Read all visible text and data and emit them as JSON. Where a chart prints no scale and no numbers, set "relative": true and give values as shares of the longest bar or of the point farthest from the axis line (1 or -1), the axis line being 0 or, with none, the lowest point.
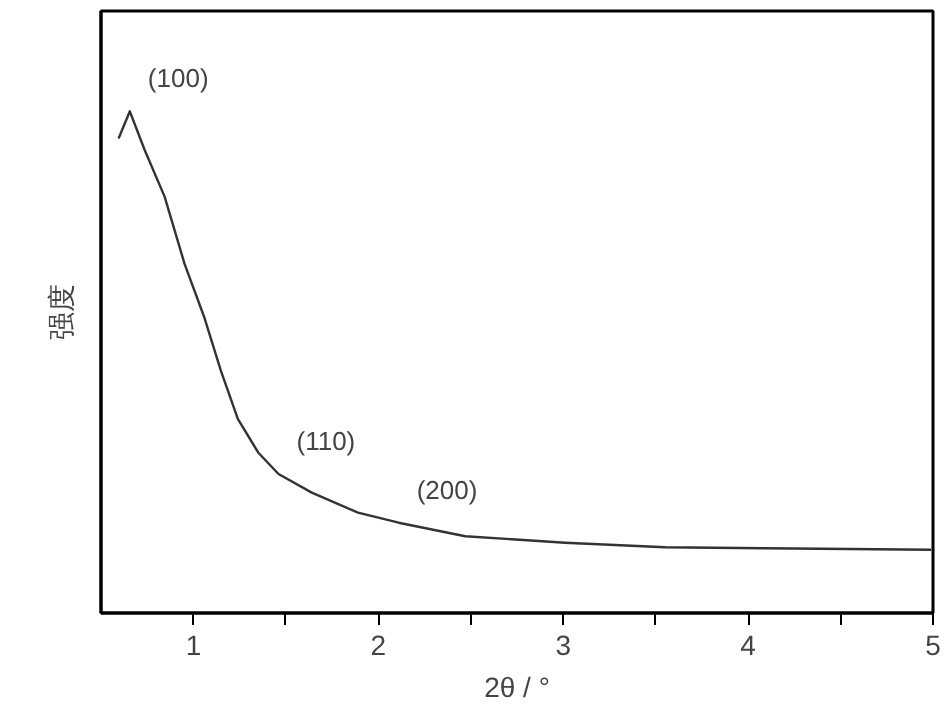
{
  "chart_data": {
    "type": "line",
    "relative": true,
    "xlabel": "2θ / °",
    "ylabel": "强度",
    "x": [
      0.595,
      0.656,
      0.735,
      0.844,
      0.952,
      1.06,
      1.15,
      1.24,
      1.35,
      1.46,
      1.64,
      1.89,
      2.11,
      2.47,
      3.01,
      3.55,
      4.09,
      4.99
    ],
    "series": [
      {
        "color": "#333333",
        "values": [
          0.946,
          1.0,
          0.924,
          0.83,
          0.696,
          0.588,
          0.481,
          0.387,
          0.32,
          0.277,
          0.24,
          0.2,
          0.18,
          0.153,
          0.14,
          0.131,
          0.129,
          0.126
        ]
      }
    ],
    "xlim": [
      0.5,
      5
    ],
    "xticks": [
      1,
      {
        "value": 1.5,
        "label": null
      },
      2,
      {
        "value": 2.5,
        "label": null
      },
      3,
      {
        "value": 3.5,
        "label": null
      },
      4,
      {
        "value": 4.5,
        "label": null
      },
      5
    ],
    "annotations": [
      {
        "text": "(100)",
        "x": 0.656,
        "y": 1.0
      },
      {
        "text": "(110)",
        "x": 1.46,
        "y": 0.277
      },
      {
        "text": "(200)",
        "x": 2.11,
        "y": 0.18
      }
    ],
    "grid": false,
    "marker": "none",
    "line_style": "solid"
  }
}
